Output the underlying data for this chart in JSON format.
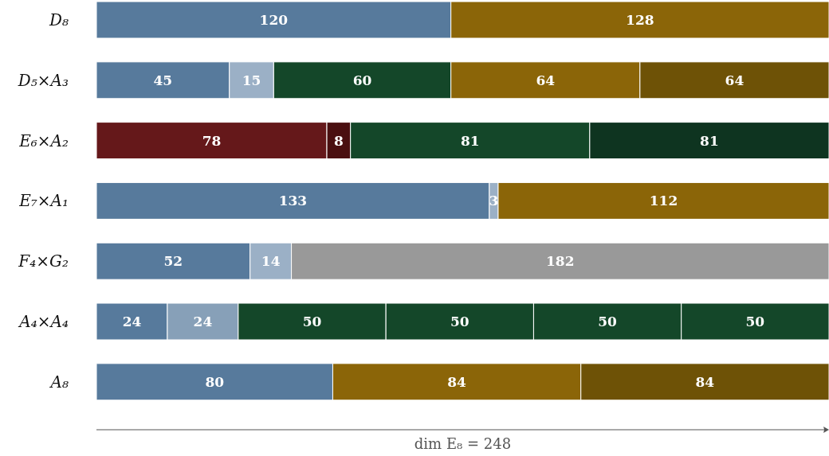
{
  "chart_data": {
    "type": "bar",
    "orientation": "horizontal",
    "stacked": true,
    "data_labels": true,
    "categories": [
      "D₈",
      "D₅×A₃",
      "E₆×A₂",
      "E₇×A₁",
      "F₄×G₂",
      "A₄×A₄",
      "A₈"
    ],
    "xlim": [
      0,
      248
    ],
    "xlabel": "dim E₈ = 248",
    "series": [
      {
        "values": [
          120,
          45,
          78,
          133,
          52,
          24,
          80
        ],
        "colors": [
          "#577a9c",
          "#577a9c",
          "#65181a",
          "#577a9c",
          "#577a9c",
          "#577a9c",
          "#577a9c"
        ]
      },
      {
        "values": [
          128,
          15,
          8,
          3,
          14,
          24,
          84
        ],
        "colors": [
          "#8b6508",
          "#9bb0c6",
          "#4a0f10",
          "#9bb0c6",
          "#9bb0c6",
          "#87a0b8",
          "#8b6508"
        ]
      },
      {
        "values": [
          null,
          60,
          81,
          112,
          182,
          50,
          84
        ],
        "colors": [
          null,
          "#144729",
          "#144729",
          "#8b6508",
          "#999999",
          "#144729",
          "#6e5206"
        ]
      },
      {
        "values": [
          null,
          64,
          81,
          null,
          null,
          50,
          null
        ],
        "colors": [
          null,
          "#8b6508",
          "#0e3420",
          null,
          null,
          "#144729",
          null
        ]
      },
      {
        "values": [
          null,
          64,
          null,
          null,
          null,
          50,
          null
        ],
        "colors": [
          null,
          "#6e5206",
          null,
          null,
          null,
          "#144729",
          null
        ]
      },
      {
        "values": [
          null,
          null,
          null,
          null,
          null,
          50,
          null
        ],
        "colors": [
          null,
          null,
          null,
          null,
          null,
          "#144729",
          null
        ]
      }
    ]
  }
}
